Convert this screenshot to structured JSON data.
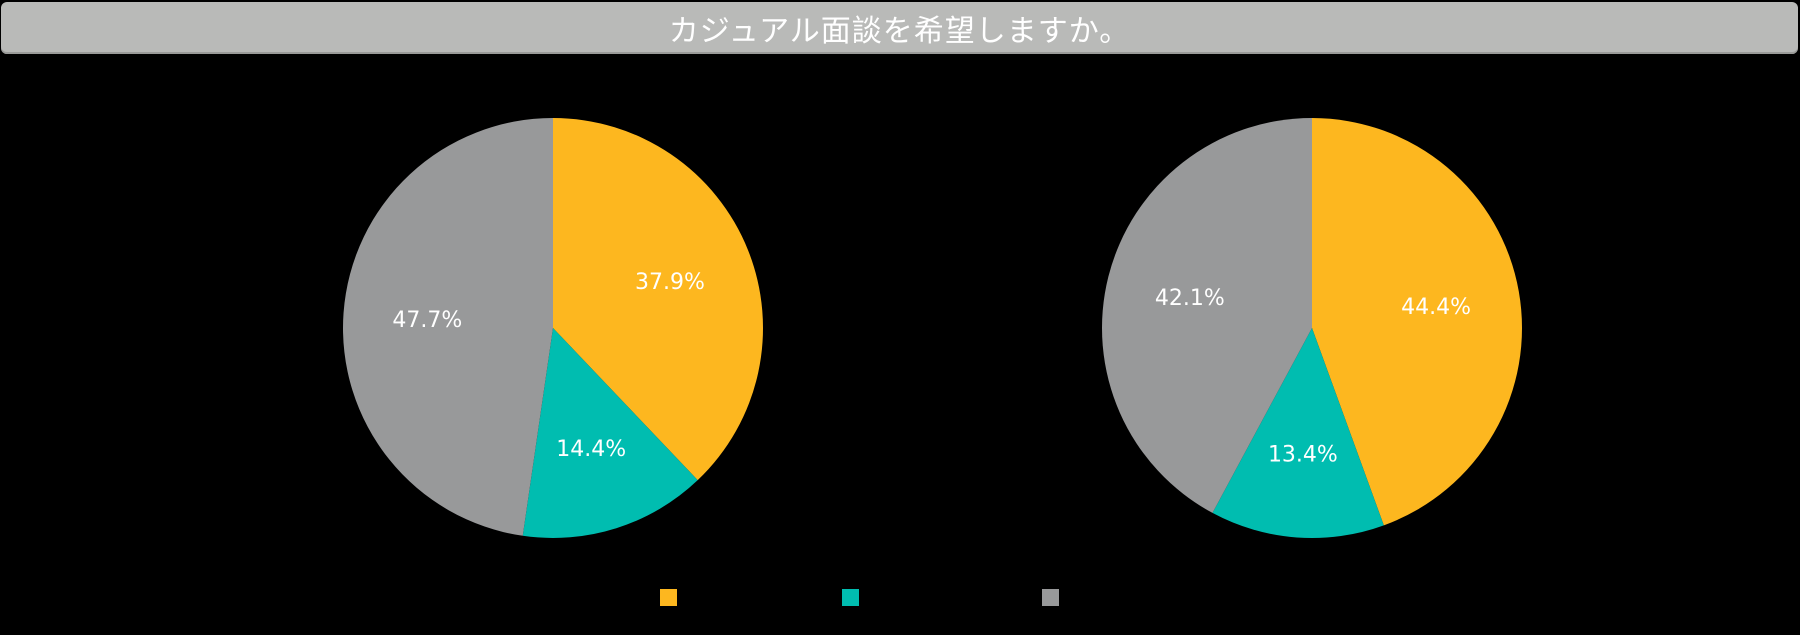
{
  "header": {
    "title": "カジュアル面談を希望しますか。"
  },
  "colors": {
    "background": "#000000",
    "title_bar": "#b9bab8",
    "yellow": "#fdb71f",
    "teal": "#00bdb0",
    "gray": "#98999a"
  },
  "legend": {
    "items": [
      {
        "label": "",
        "color": "#fdb71f"
      },
      {
        "label": "",
        "color": "#00bdb0"
      },
      {
        "label": "",
        "color": "#98999a"
      }
    ]
  },
  "chart_data": [
    {
      "type": "pie",
      "title": "",
      "categories": [
        "series-yellow",
        "series-teal",
        "series-gray"
      ],
      "values": [
        37.9,
        14.4,
        47.7
      ],
      "labels": [
        "37.9%",
        "14.4%",
        "47.7%"
      ],
      "colors": [
        "#fdb71f",
        "#00bdb0",
        "#98999a"
      ],
      "start_angle": "12 o'clock, clockwise",
      "legend_position": "bottom"
    },
    {
      "type": "pie",
      "title": "",
      "categories": [
        "series-yellow",
        "series-teal",
        "series-gray"
      ],
      "values": [
        44.4,
        13.4,
        42.1
      ],
      "labels": [
        "44.4%",
        "13.4%",
        "42.1%"
      ],
      "colors": [
        "#fdb71f",
        "#00bdb0",
        "#98999a"
      ],
      "start_angle": "12 o'clock, clockwise",
      "legend_position": "bottom"
    }
  ]
}
